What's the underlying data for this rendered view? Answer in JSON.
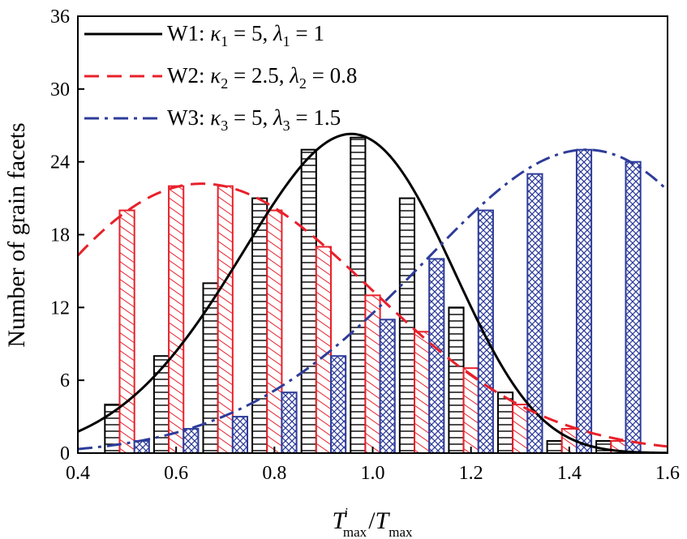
{
  "chart_data": {
    "type": "bar",
    "ylabel": "Number of grain facets",
    "xlabel": {
      "numerator": "T",
      "numerator_sub": "max",
      "numerator_sup": "i",
      "separator": "/",
      "denominator": "T",
      "denominator_sub": "max"
    },
    "xlim": [
      0.4,
      1.6
    ],
    "ylim": [
      0,
      36
    ],
    "x_ticks": [
      0.4,
      0.6,
      0.8,
      1.0,
      1.2,
      1.4,
      1.6
    ],
    "x_tick_labels": [
      "0.4",
      "0.6",
      "0.8",
      "1.0",
      "1.2",
      "1.4",
      "1.6"
    ],
    "y_ticks": [
      0,
      6,
      12,
      18,
      24,
      30,
      36
    ],
    "y_tick_labels": [
      "0",
      "6",
      "12",
      "18",
      "24",
      "30",
      "36"
    ],
    "grid": false,
    "legend_position": "top-left",
    "colors": {
      "W1": "#000000",
      "W2": "#e8202a",
      "W3": "#2e3c9a"
    },
    "series": [
      {
        "key": "W1",
        "legend": {
          "name": "W1",
          "kappa_sub": "1",
          "kappa_val": "5",
          "lambda_sub": "1",
          "lambda_val": "1"
        },
        "pattern": "horizontal-lines",
        "line_style": "solid",
        "bar_x": [
          0.47,
          0.57,
          0.67,
          0.77,
          0.87,
          0.97,
          1.07,
          1.17,
          1.27,
          1.37,
          1.47
        ],
        "values": [
          4,
          8,
          14,
          21,
          25,
          26,
          21,
          12,
          5,
          1,
          1
        ],
        "curve": {
          "type": "weibull",
          "kappa": 5,
          "lambda": 1,
          "peak": 26.3
        }
      },
      {
        "key": "W2",
        "legend": {
          "name": "W2",
          "kappa_sub": "2",
          "kappa_val": "2.5",
          "lambda_sub": "2",
          "lambda_val": "0.8"
        },
        "pattern": "diagonal-lines",
        "line_style": "dashed",
        "bar_x": [
          0.5,
          0.6,
          0.7,
          0.8,
          0.9,
          1.0,
          1.1,
          1.2,
          1.3,
          1.4,
          1.5
        ],
        "values": [
          20,
          22,
          22,
          20,
          17,
          13,
          10,
          7,
          4,
          2,
          1
        ],
        "curve": {
          "type": "weibull",
          "kappa": 2.5,
          "lambda": 0.8,
          "peak": 22.2
        }
      },
      {
        "key": "W3",
        "legend": {
          "name": "W3",
          "kappa_sub": "3",
          "kappa_val": "5",
          "lambda_sub": "3",
          "lambda_val": "1.5"
        },
        "pattern": "crosshatch",
        "line_style": "dash-dot",
        "bar_x": [
          0.53,
          0.63,
          0.73,
          0.83,
          0.93,
          1.03,
          1.13,
          1.23,
          1.33,
          1.43,
          1.53
        ],
        "values": [
          1,
          2,
          3,
          5,
          8,
          11,
          16,
          20,
          23,
          25,
          24
        ],
        "curve": {
          "type": "weibull",
          "kappa": 5,
          "lambda": 1.5,
          "peak": 25
        }
      }
    ]
  }
}
